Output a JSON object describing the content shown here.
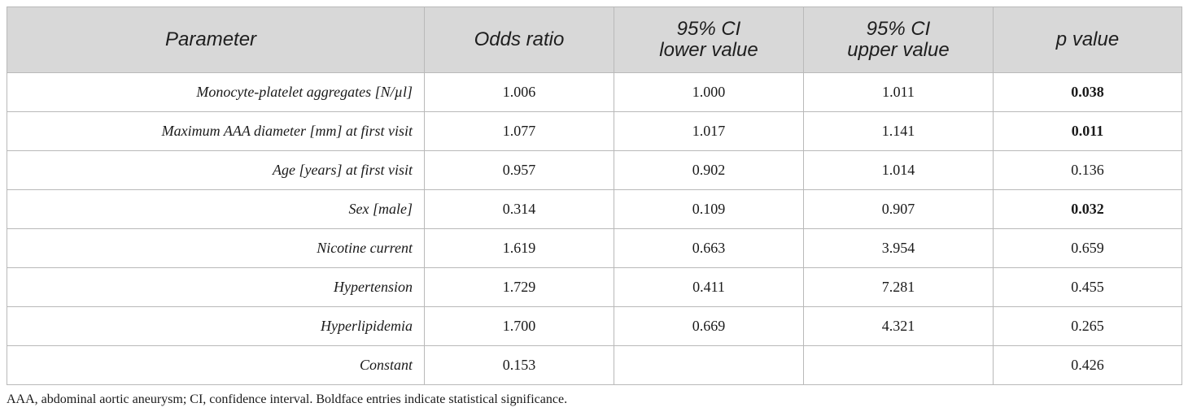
{
  "table": {
    "columns": [
      {
        "label": "Parameter"
      },
      {
        "label": "Odds ratio"
      },
      {
        "line1": "95% CI",
        "line2": "lower value"
      },
      {
        "line1": "95% CI",
        "line2": "upper value"
      },
      {
        "label": "p value"
      }
    ],
    "rows": [
      {
        "parameter": "Monocyte-platelet aggregates [N/µl]",
        "odds_ratio": "1.006",
        "ci_lower": "1.000",
        "ci_upper": "1.011",
        "p_value": "0.038",
        "significant": true
      },
      {
        "parameter": "Maximum AAA diameter [mm] at first visit",
        "odds_ratio": "1.077",
        "ci_lower": "1.017",
        "ci_upper": "1.141",
        "p_value": "0.011",
        "significant": true
      },
      {
        "parameter": "Age [years] at first visit",
        "odds_ratio": "0.957",
        "ci_lower": "0.902",
        "ci_upper": "1.014",
        "p_value": "0.136",
        "significant": false
      },
      {
        "parameter": "Sex [male]",
        "odds_ratio": "0.314",
        "ci_lower": "0.109",
        "ci_upper": "0.907",
        "p_value": "0.032",
        "significant": true
      },
      {
        "parameter": "Nicotine current",
        "odds_ratio": "1.619",
        "ci_lower": "0.663",
        "ci_upper": "3.954",
        "p_value": "0.659",
        "significant": false
      },
      {
        "parameter": "Hypertension",
        "odds_ratio": "1.729",
        "ci_lower": "0.411",
        "ci_upper": "7.281",
        "p_value": "0.455",
        "significant": false
      },
      {
        "parameter": "Hyperlipidemia",
        "odds_ratio": "1.700",
        "ci_lower": "0.669",
        "ci_upper": "4.321",
        "p_value": "0.265",
        "significant": false
      },
      {
        "parameter": "Constant",
        "odds_ratio": "0.153",
        "ci_lower": "",
        "ci_upper": "",
        "p_value": "0.426",
        "significant": false
      }
    ]
  },
  "footnote": "AAA, abdominal aortic aneurysm; CI, confidence interval. Boldface entries indicate statistical significance.",
  "colors": {
    "header_background": "#d8d8d8",
    "border": "#b9b9b9",
    "text": "#1a1a1a"
  }
}
